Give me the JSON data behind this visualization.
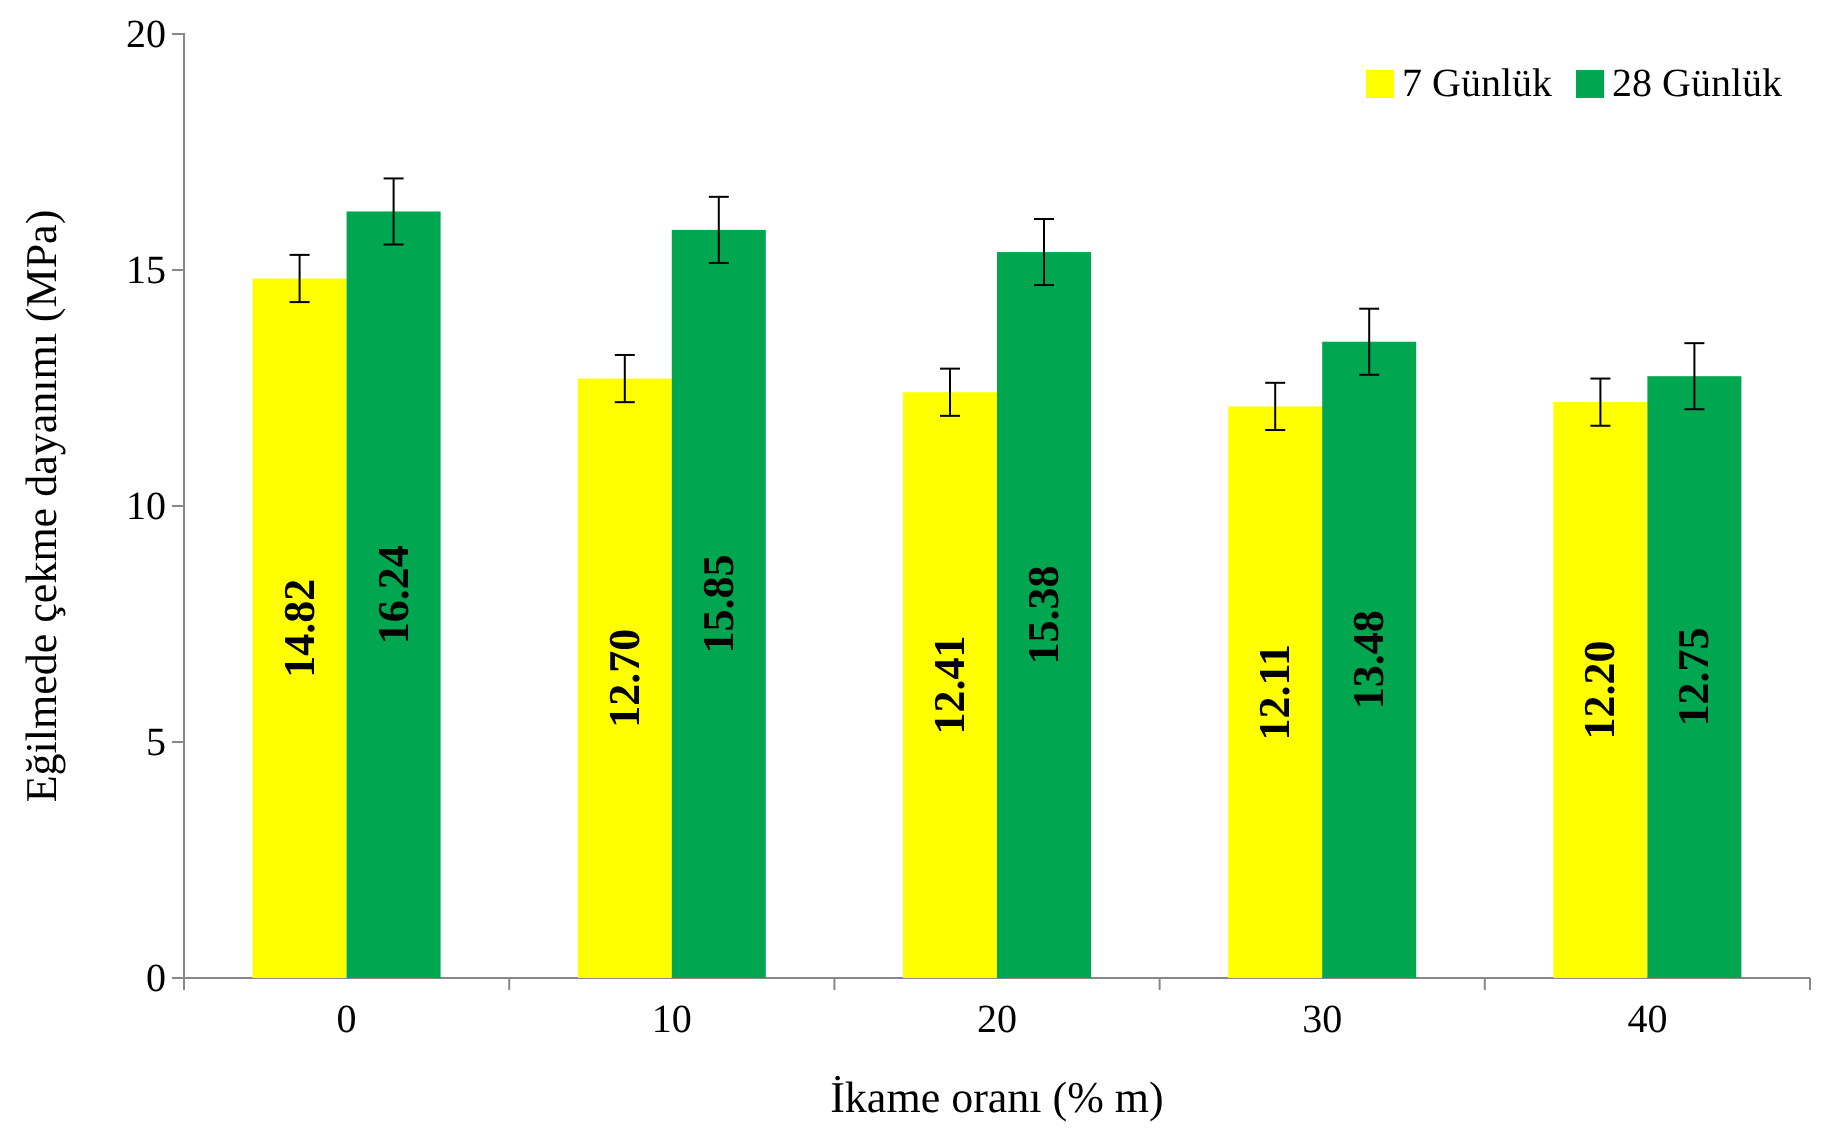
{
  "chart_data": {
    "type": "bar",
    "xlabel": "İkame oranı (% m)",
    "ylabel": "Eğilmede çekme dayanımı (MPa)",
    "categories": [
      "0",
      "10",
      "20",
      "30",
      "40"
    ],
    "ylim": [
      0,
      20
    ],
    "yticks": [
      0,
      5,
      10,
      15,
      20
    ],
    "grid": false,
    "legend": "top right",
    "series": [
      {
        "name": "7 Günlük",
        "color": "#ffff00",
        "values": [
          14.82,
          12.7,
          12.41,
          12.11,
          12.2
        ],
        "value_labels": [
          "14.82",
          "12.70",
          "12.41",
          "12.11",
          "12.20"
        ],
        "errors": [
          0.5,
          0.5,
          0.5,
          0.5,
          0.5
        ]
      },
      {
        "name": "28 Günlük",
        "color": "#00a650",
        "values": [
          16.24,
          15.85,
          15.38,
          13.48,
          12.75
        ],
        "value_labels": [
          "16.24",
          "15.85",
          "15.38",
          "13.48",
          "12.75"
        ],
        "errors": [
          0.7,
          0.7,
          0.7,
          0.7,
          0.7
        ]
      }
    ]
  }
}
